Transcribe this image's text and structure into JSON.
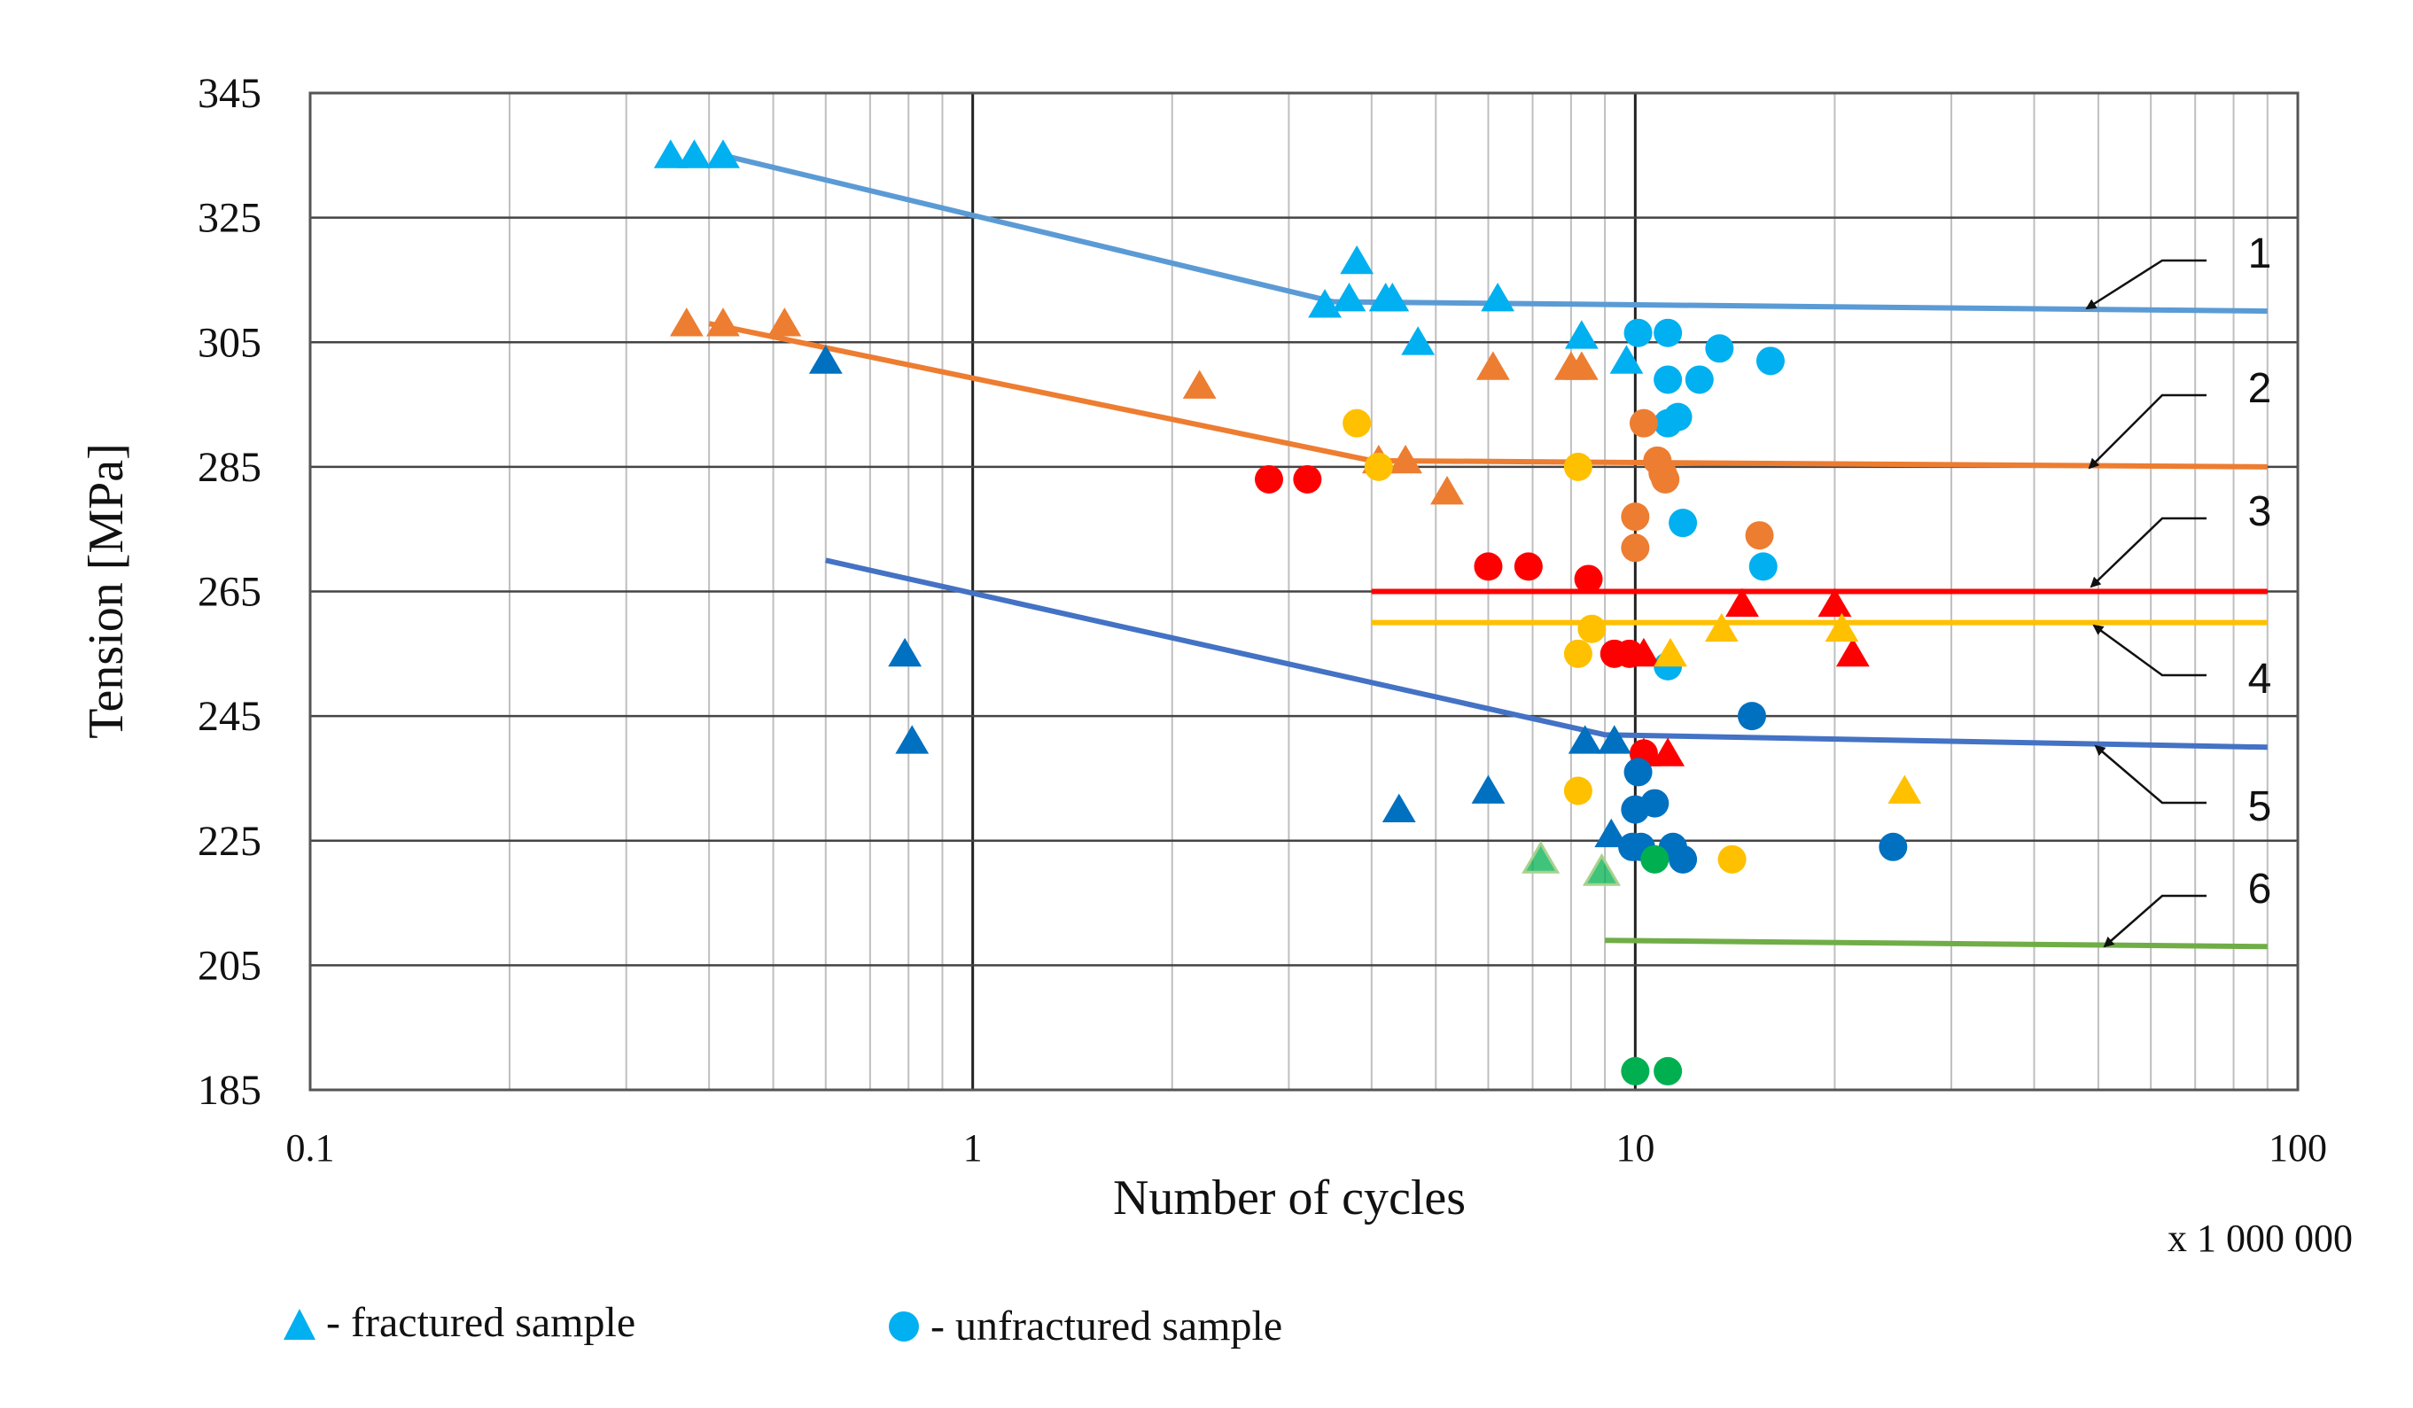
{
  "chart_data": {
    "type": "scatter",
    "title": "",
    "xlabel": "Number of cycles",
    "x_multiplier_label": "x 1 000 000",
    "ylabel": "Tension  [MPa]",
    "x_scale": "log",
    "xlim": [
      0.1,
      100
    ],
    "ylim": [
      185,
      345
    ],
    "x_ticks": [
      0.1,
      1,
      10,
      100
    ],
    "x_tick_labels": [
      "0.1",
      "1",
      "10",
      "100"
    ],
    "y_ticks": [
      185,
      205,
      225,
      245,
      265,
      285,
      305,
      325,
      345
    ],
    "y_tick_labels": [
      "185",
      "205",
      "225",
      "245",
      "265",
      "285",
      "305",
      "325",
      "345"
    ],
    "grid": true,
    "legend": {
      "placement": "bottom",
      "items": [
        {
          "marker": "triangle",
          "label": "- fractured sample",
          "color": "#00B0F0"
        },
        {
          "marker": "circle",
          "label": "- unfractured sample",
          "color": "#00B0F0"
        }
      ]
    },
    "curve_labels": [
      "1",
      "2",
      "3",
      "4",
      "5",
      "6"
    ],
    "series": [
      {
        "name": "1",
        "color": "#00B0F0",
        "line_color": "#5B9BD5",
        "line": [
          [
            0.42,
            335
          ],
          [
            3.5,
            311.5
          ],
          [
            90,
            310
          ]
        ],
        "fractured": [
          [
            0.35,
            335
          ],
          [
            0.38,
            335
          ],
          [
            0.42,
            335
          ],
          [
            3.4,
            311
          ],
          [
            3.7,
            312
          ],
          [
            3.8,
            318
          ],
          [
            4.2,
            312
          ],
          [
            4.3,
            312
          ],
          [
            4.7,
            305
          ],
          [
            6.2,
            312
          ],
          [
            8.3,
            306
          ],
          [
            9.7,
            302
          ]
        ],
        "unfractured": [
          [
            10.1,
            306.5
          ],
          [
            11.2,
            306.5
          ],
          [
            11.2,
            299
          ],
          [
            12.5,
            299
          ],
          [
            13.4,
            304
          ],
          [
            16,
            302
          ],
          [
            11.2,
            292
          ],
          [
            11.6,
            293
          ],
          [
            11.8,
            276
          ],
          [
            11.2,
            253
          ],
          [
            15.6,
            269
          ]
        ]
      },
      {
        "name": "2",
        "color": "#ED7D31",
        "line_color": "#ED7D31",
        "line": [
          [
            0.4,
            308
          ],
          [
            4,
            286
          ],
          [
            90,
            285
          ]
        ],
        "fractured": [
          [
            0.37,
            308
          ],
          [
            0.42,
            308
          ],
          [
            0.52,
            308
          ],
          [
            2.2,
            298
          ],
          [
            4.1,
            286
          ],
          [
            4.5,
            286
          ],
          [
            5.2,
            281
          ],
          [
            6.1,
            301
          ],
          [
            8,
            301
          ],
          [
            8.3,
            301
          ]
        ],
        "unfractured": [
          [
            10.3,
            292
          ],
          [
            10.8,
            286
          ],
          [
            11.0,
            284
          ],
          [
            11.1,
            283
          ],
          [
            10,
            277
          ],
          [
            10,
            272
          ],
          [
            15.4,
            274
          ]
        ]
      },
      {
        "name": "3",
        "color": "#FF0000",
        "line_color": "#FF0000",
        "line": [
          [
            4,
            265
          ],
          [
            90,
            265
          ]
        ],
        "fractured": [
          [
            10.3,
            255
          ],
          [
            14.5,
            263
          ],
          [
            20,
            263
          ],
          [
            21.3,
            255
          ],
          [
            10.3,
            239
          ],
          [
            11.2,
            239
          ]
        ],
        "unfractured": [
          [
            2.8,
            283
          ],
          [
            3.2,
            283
          ],
          [
            6,
            269
          ],
          [
            6.9,
            269
          ],
          [
            8.5,
            267
          ],
          [
            9.3,
            255
          ],
          [
            9.8,
            255
          ],
          [
            10.3,
            239
          ]
        ]
      },
      {
        "name": "4",
        "color": "#FFC000",
        "line_color": "#FFC000",
        "line": [
          [
            4,
            260
          ],
          [
            90,
            260
          ]
        ],
        "fractured": [
          [
            11.3,
            255
          ],
          [
            13.5,
            259
          ],
          [
            20.5,
            259
          ],
          [
            25.5,
            233
          ]
        ],
        "unfractured": [
          [
            3.8,
            292
          ],
          [
            4.1,
            285
          ],
          [
            8.2,
            285
          ],
          [
            8.6,
            259
          ],
          [
            8.2,
            255
          ],
          [
            8.2,
            233
          ],
          [
            14,
            222
          ]
        ]
      },
      {
        "name": "5",
        "color": "#0070C0",
        "line_color": "#4472C4",
        "line": [
          [
            0.6,
            270
          ],
          [
            9,
            242
          ],
          [
            90,
            240
          ]
        ],
        "fractured": [
          [
            0.6,
            302
          ],
          [
            0.79,
            255
          ],
          [
            0.81,
            241
          ],
          [
            4.4,
            230
          ],
          [
            6,
            233
          ],
          [
            8.4,
            241
          ],
          [
            9.3,
            241
          ],
          [
            9.2,
            226
          ]
        ],
        "unfractured": [
          [
            10.1,
            236
          ],
          [
            10,
            230
          ],
          [
            10.7,
            231
          ],
          [
            9.9,
            224
          ],
          [
            10.2,
            224
          ],
          [
            11.4,
            224
          ],
          [
            11.8,
            222
          ],
          [
            15,
            245
          ],
          [
            24.5,
            224
          ]
        ]
      },
      {
        "name": "6",
        "color": "#00B050",
        "line_color": "#70AD47",
        "line": [
          [
            9,
            209
          ],
          [
            90,
            208
          ]
        ],
        "fractured": [
          [
            7.2,
            222
          ],
          [
            8.9,
            220
          ]
        ],
        "unfractured": [
          [
            10.7,
            222
          ],
          [
            10,
            188
          ],
          [
            11.2,
            188
          ]
        ]
      }
    ]
  }
}
